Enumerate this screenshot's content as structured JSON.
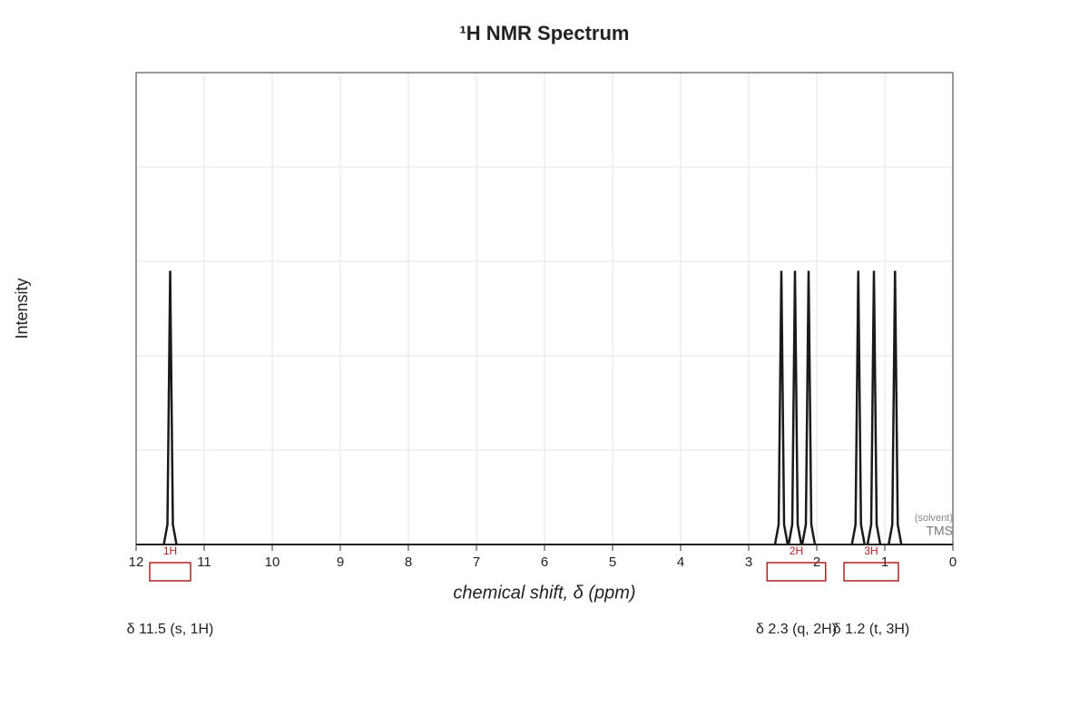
{
  "chart_data": {
    "type": "nmr",
    "title": "¹H NMR Spectrum",
    "x_label": "chemical shift, δ (ppm)",
    "y_label": "Intensity",
    "xlim": [
      12,
      0
    ],
    "xticks": [
      12,
      11,
      10,
      9,
      8,
      7,
      6,
      5,
      4,
      3,
      2,
      1,
      0
    ],
    "ylim": [
      0,
      1
    ],
    "grid": true,
    "color": "#1a1a1a",
    "x": [
      11.5,
      2.52,
      2.32,
      2.12,
      1.39,
      1.16,
      0.85
    ],
    "values": [
      0.58,
      0.58,
      0.58,
      0.58,
      0.58,
      0.58,
      0.58
    ],
    "integration_color": "#b22222",
    "multiplets": [
      {
        "label": "1H",
        "range": [
          11.8,
          11.2
        ],
        "annotation": "δ 11.5 (s, 1H)"
      },
      {
        "label": "2H",
        "range": [
          2.73,
          1.87
        ],
        "annotation": "δ 2.3 (q, 2H)"
      },
      {
        "label": "3H",
        "range": [
          1.6,
          0.8
        ],
        "annotation": "δ 1.2 (t, 3H)"
      }
    ],
    "reference": {
      "label": "TMS",
      "note": "(solvent)",
      "x": 0
    }
  }
}
